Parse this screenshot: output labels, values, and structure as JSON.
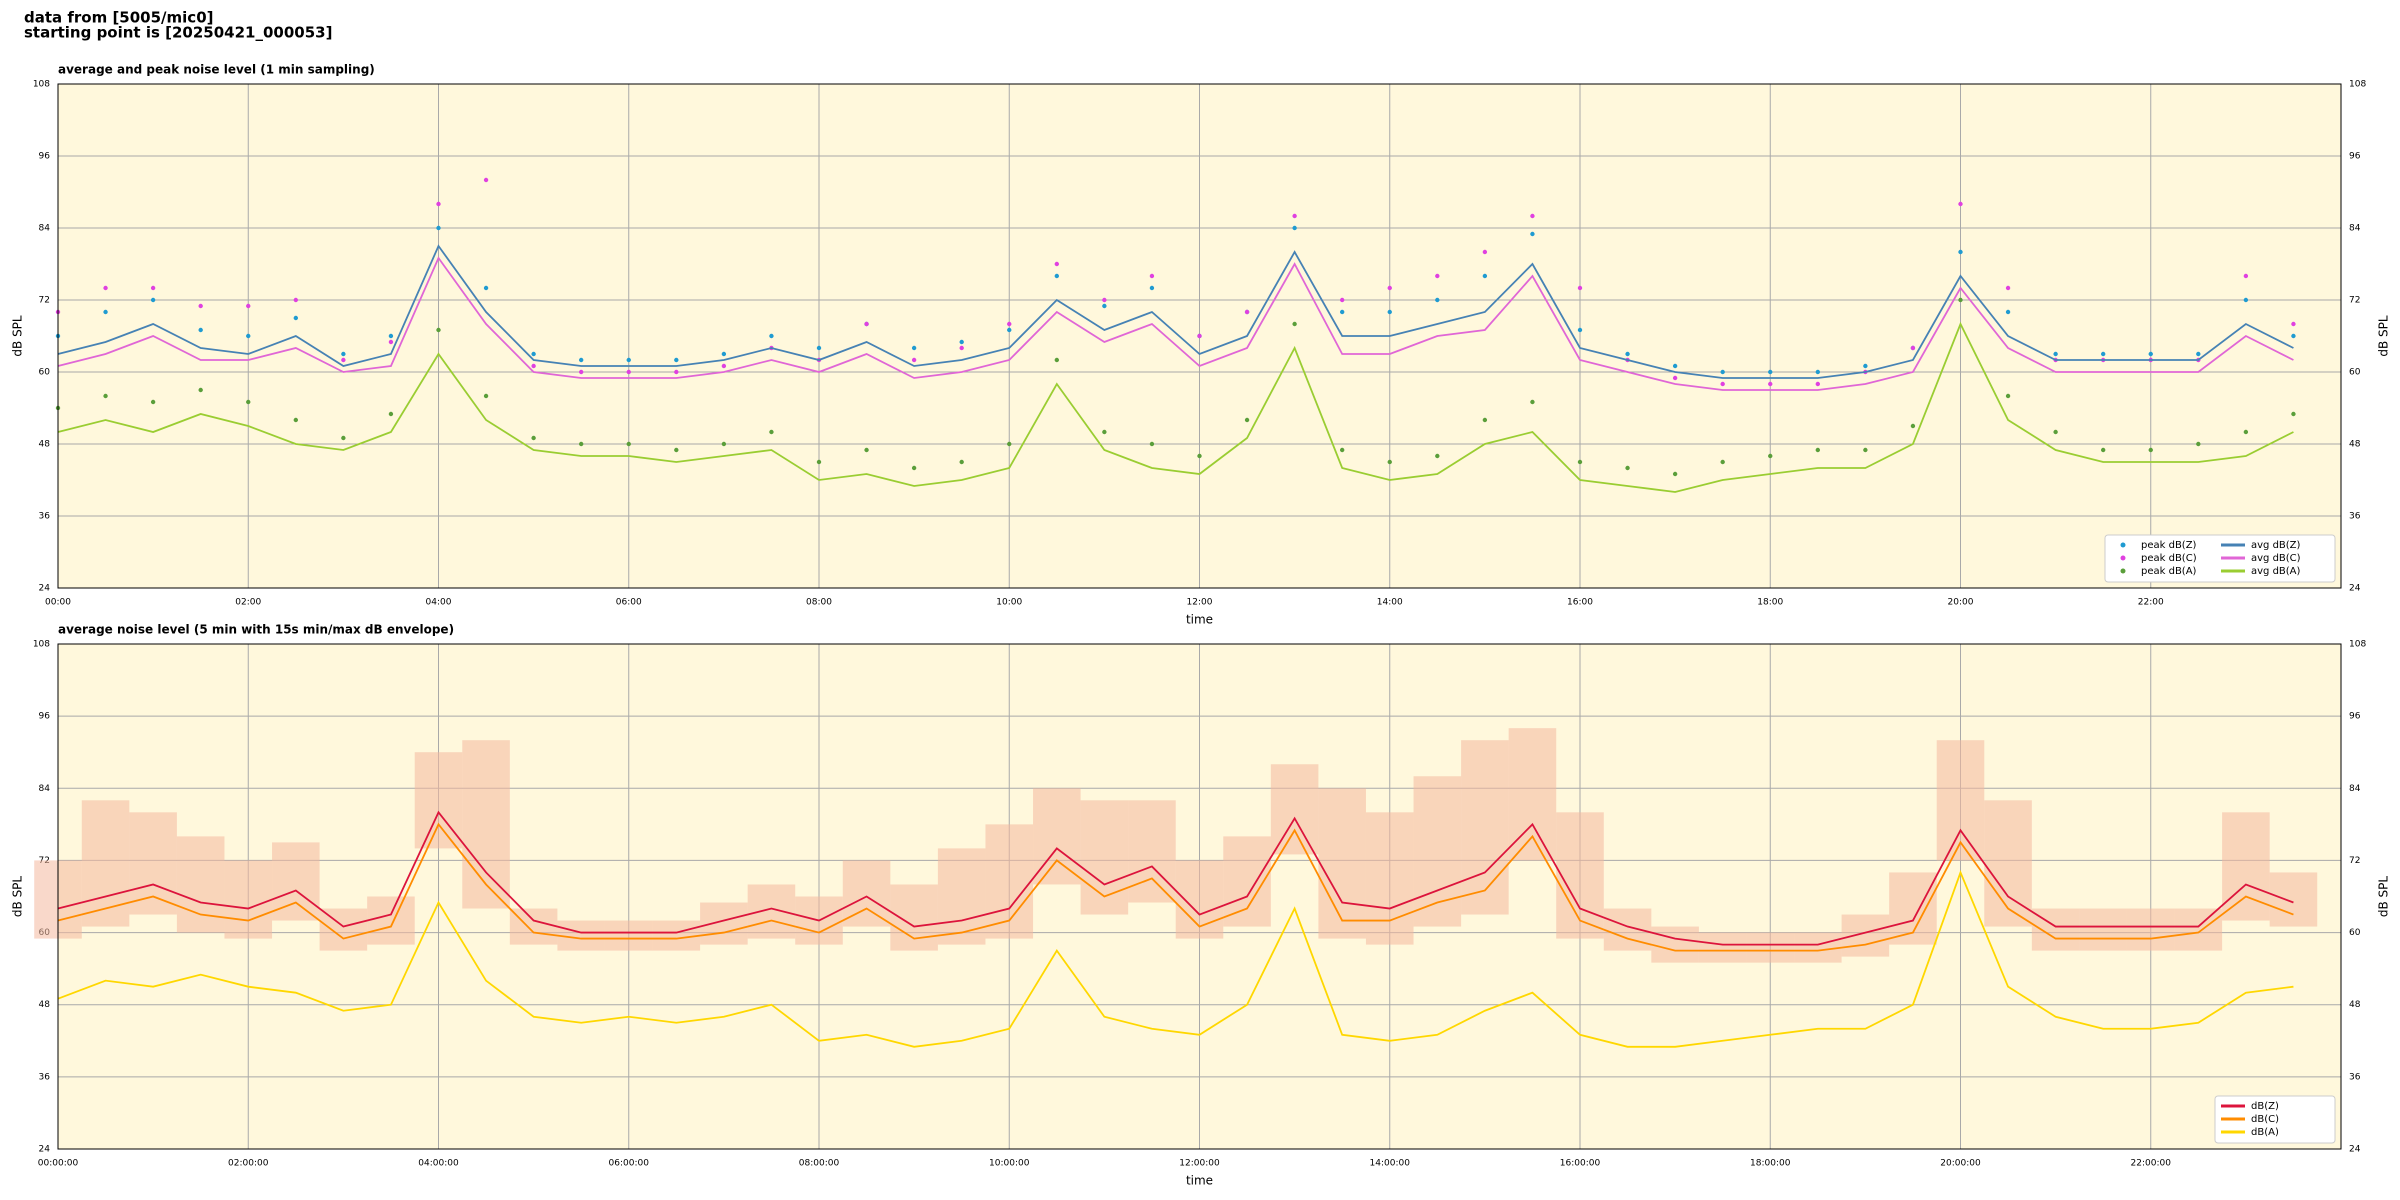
{
  "header": {
    "source": "data from [5005/mic0]",
    "start": "starting point is [20250421_000053]"
  },
  "chart_data": [
    {
      "type": "line",
      "title": "average and peak noise level (1 min sampling)",
      "xlabel": "time",
      "ylabel": "dB SPL",
      "x": [
        0,
        0.5,
        1,
        1.5,
        2,
        2.5,
        3,
        3.5,
        4,
        4.5,
        5,
        5.5,
        6,
        6.5,
        7,
        7.5,
        8,
        8.5,
        9,
        9.5,
        10,
        10.5,
        11,
        11.5,
        12,
        12.5,
        13,
        13.5,
        14,
        14.5,
        15,
        15.5,
        16,
        16.5,
        17,
        17.5,
        18,
        18.5,
        19,
        19.5,
        20,
        20.5,
        21,
        21.5,
        22,
        22.5,
        23,
        23.5
      ],
      "xlim": [
        0,
        24
      ],
      "xticks": [
        {
          "value": 0,
          "label": "00:00"
        },
        {
          "value": 2,
          "label": "02:00"
        },
        {
          "value": 4,
          "label": "04:00"
        },
        {
          "value": 6,
          "label": "06:00"
        },
        {
          "value": 8,
          "label": "08:00"
        },
        {
          "value": 10,
          "label": "10:00"
        },
        {
          "value": 12,
          "label": "12:00"
        },
        {
          "value": 14,
          "label": "14:00"
        },
        {
          "value": 16,
          "label": "16:00"
        },
        {
          "value": 18,
          "label": "18:00"
        },
        {
          "value": 20,
          "label": "20:00"
        },
        {
          "value": 22,
          "label": "22:00"
        }
      ],
      "ylim": [
        24,
        108
      ],
      "yticks": [
        24,
        36,
        48,
        60,
        72,
        84,
        96,
        108
      ],
      "grid": true,
      "legend": "lower right",
      "legend_columns": 2,
      "series": [
        {
          "name": "peak dB(Z)",
          "type": "scatter",
          "color": "#1f9bd1",
          "values": [
            66,
            70,
            72,
            67,
            66,
            69,
            63,
            66,
            84,
            74,
            63,
            62,
            62,
            62,
            63,
            66,
            64,
            68,
            64,
            65,
            67,
            76,
            71,
            74,
            66,
            70,
            84,
            70,
            70,
            72,
            76,
            83,
            67,
            63,
            61,
            60,
            60,
            60,
            61,
            64,
            80,
            70,
            63,
            63,
            63,
            63,
            72,
            66
          ]
        },
        {
          "name": "peak dB(C)",
          "type": "scatter",
          "color": "#e040e0",
          "values": [
            70,
            74,
            74,
            71,
            71,
            72,
            62,
            65,
            88,
            92,
            61,
            60,
            60,
            60,
            61,
            64,
            62,
            68,
            62,
            64,
            68,
            78,
            72,
            76,
            66,
            70,
            86,
            72,
            74,
            76,
            80,
            86,
            74,
            62,
            59,
            58,
            58,
            58,
            60,
            64,
            88,
            74,
            62,
            62,
            62,
            62,
            76,
            68
          ]
        },
        {
          "name": "peak dB(A)",
          "type": "scatter",
          "color": "#5a9e3a",
          "values": [
            54,
            56,
            55,
            57,
            55,
            52,
            49,
            53,
            67,
            56,
            49,
            48,
            48,
            47,
            48,
            50,
            45,
            47,
            44,
            45,
            48,
            62,
            50,
            48,
            46,
            52,
            68,
            47,
            45,
            46,
            52,
            55,
            45,
            44,
            43,
            45,
            46,
            47,
            47,
            51,
            72,
            56,
            50,
            47,
            47,
            48,
            50,
            53
          ]
        },
        {
          "name": "avg dB(Z)",
          "type": "line",
          "color": "#4682b4",
          "values": [
            63,
            65,
            68,
            64,
            63,
            66,
            61,
            63,
            81,
            70,
            62,
            61,
            61,
            61,
            62,
            64,
            62,
            65,
            61,
            62,
            64,
            72,
            67,
            70,
            63,
            66,
            80,
            66,
            66,
            68,
            70,
            78,
            64,
            62,
            60,
            59,
            59,
            59,
            60,
            62,
            76,
            66,
            62,
            62,
            62,
            62,
            68,
            64
          ]
        },
        {
          "name": "avg dB(C)",
          "type": "line",
          "color": "#e066d6",
          "values": [
            61,
            63,
            66,
            62,
            62,
            64,
            60,
            61,
            79,
            68,
            60,
            59,
            59,
            59,
            60,
            62,
            60,
            63,
            59,
            60,
            62,
            70,
            65,
            68,
            61,
            64,
            78,
            63,
            63,
            66,
            67,
            76,
            62,
            60,
            58,
            57,
            57,
            57,
            58,
            60,
            74,
            64,
            60,
            60,
            60,
            60,
            66,
            62
          ]
        },
        {
          "name": "avg dB(A)",
          "type": "line",
          "color": "#9acd32",
          "values": [
            50,
            52,
            50,
            53,
            51,
            48,
            47,
            50,
            63,
            52,
            47,
            46,
            46,
            45,
            46,
            47,
            42,
            43,
            41,
            42,
            44,
            58,
            47,
            44,
            43,
            49,
            64,
            44,
            42,
            43,
            48,
            50,
            42,
            41,
            40,
            42,
            43,
            44,
            44,
            48,
            68,
            52,
            47,
            45,
            45,
            45,
            46,
            50
          ]
        }
      ]
    },
    {
      "type": "line",
      "title": "average noise level (5 min with 15s min/max dB envelope)",
      "xlabel": "time",
      "ylabel": "dB SPL",
      "x": [
        0,
        0.5,
        1,
        1.5,
        2,
        2.5,
        3,
        3.5,
        4,
        4.5,
        5,
        5.5,
        6,
        6.5,
        7,
        7.5,
        8,
        8.5,
        9,
        9.5,
        10,
        10.5,
        11,
        11.5,
        12,
        12.5,
        13,
        13.5,
        14,
        14.5,
        15,
        15.5,
        16,
        16.5,
        17,
        17.5,
        18,
        18.5,
        19,
        19.5,
        20,
        20.5,
        21,
        21.5,
        22,
        22.5,
        23,
        23.5
      ],
      "xlim": [
        0,
        24
      ],
      "xticks": [
        {
          "value": 0,
          "label": "00:00:00"
        },
        {
          "value": 2,
          "label": "02:00:00"
        },
        {
          "value": 4,
          "label": "04:00:00"
        },
        {
          "value": 6,
          "label": "06:00:00"
        },
        {
          "value": 8,
          "label": "08:00:00"
        },
        {
          "value": 10,
          "label": "10:00:00"
        },
        {
          "value": 12,
          "label": "12:00:00"
        },
        {
          "value": 14,
          "label": "14:00:00"
        },
        {
          "value": 16,
          "label": "16:00:00"
        },
        {
          "value": 18,
          "label": "18:00:00"
        },
        {
          "value": 20,
          "label": "20:00:00"
        },
        {
          "value": 22,
          "label": "22:00:00"
        }
      ],
      "ylim": [
        24,
        108
      ],
      "yticks": [
        24,
        36,
        48,
        60,
        72,
        84,
        96,
        108
      ],
      "grid": true,
      "legend": "lower right",
      "legend_columns": 1,
      "envelope": {
        "color": "#f4b89e",
        "lower": [
          59,
          61,
          63,
          60,
          59,
          62,
          57,
          58,
          74,
          64,
          58,
          57,
          57,
          57,
          58,
          59,
          58,
          61,
          57,
          58,
          59,
          68,
          63,
          65,
          59,
          61,
          73,
          59,
          58,
          61,
          63,
          72,
          59,
          57,
          55,
          55,
          55,
          55,
          56,
          58,
          72,
          61,
          57,
          57,
          57,
          57,
          62,
          61
        ],
        "upper": [
          72,
          82,
          80,
          76,
          72,
          75,
          64,
          66,
          90,
          92,
          64,
          62,
          62,
          62,
          65,
          68,
          66,
          72,
          68,
          74,
          78,
          84,
          82,
          82,
          72,
          76,
          88,
          84,
          80,
          86,
          92,
          94,
          80,
          64,
          61,
          60,
          60,
          60,
          63,
          70,
          92,
          82,
          64,
          64,
          64,
          64,
          80,
          70
        ]
      },
      "series": [
        {
          "name": "dB(Z)",
          "type": "line",
          "color": "#dc143c",
          "values": [
            64,
            66,
            68,
            65,
            64,
            67,
            61,
            63,
            80,
            70,
            62,
            60,
            60,
            60,
            62,
            64,
            62,
            66,
            61,
            62,
            64,
            74,
            68,
            71,
            63,
            66,
            79,
            65,
            64,
            67,
            70,
            78,
            64,
            61,
            59,
            58,
            58,
            58,
            60,
            62,
            77,
            66,
            61,
            61,
            61,
            61,
            68,
            65
          ]
        },
        {
          "name": "dB(C)",
          "type": "line",
          "color": "#ff8c00",
          "values": [
            62,
            64,
            66,
            63,
            62,
            65,
            59,
            61,
            78,
            68,
            60,
            59,
            59,
            59,
            60,
            62,
            60,
            64,
            59,
            60,
            62,
            72,
            66,
            69,
            61,
            64,
            77,
            62,
            62,
            65,
            67,
            76,
            62,
            59,
            57,
            57,
            57,
            57,
            58,
            60,
            75,
            64,
            59,
            59,
            59,
            60,
            66,
            63
          ]
        },
        {
          "name": "dB(A)",
          "type": "line",
          "color": "#ffd700",
          "values": [
            49,
            52,
            51,
            53,
            51,
            50,
            47,
            48,
            65,
            52,
            46,
            45,
            46,
            45,
            46,
            48,
            42,
            43,
            41,
            42,
            44,
            57,
            46,
            44,
            43,
            48,
            64,
            43,
            42,
            43,
            47,
            50,
            43,
            41,
            41,
            42,
            43,
            44,
            44,
            48,
            70,
            51,
            46,
            44,
            44,
            45,
            50,
            51
          ]
        }
      ]
    }
  ]
}
